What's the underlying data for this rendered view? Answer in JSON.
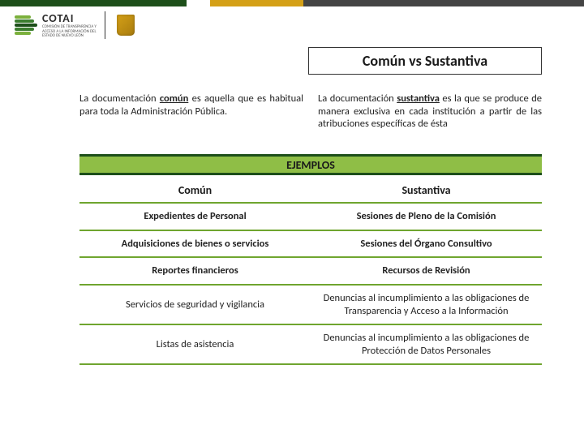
{
  "colors": {
    "green_dark": "#1d4f1a",
    "green_mid": "#3b7d2f",
    "green_light": "#7bb03c",
    "yellow": "#d4a017",
    "gray": "#444444",
    "white": "#ffffff",
    "band_green": "#8fbe46",
    "border_green": "#6fa52f"
  },
  "logo": {
    "name": "COTAI",
    "sub1": "COMISIÓN DE TRANSPARENCIA Y",
    "sub2": "ACCESO A LA INFORMACIÓN DEL",
    "sub3": "ESTADO DE NUEVO LEÓN"
  },
  "title": "Común vs Sustantiva",
  "definitions": {
    "comun_pre": "La documentación ",
    "comun_hl": "común",
    "comun_post": " es aquella que es habitual para toda la Administración Pública.",
    "sust_pre": "La documentación ",
    "sust_hl": "sustantiva",
    "sust_post": " es la que se produce de manera exclusiva en cada institución a partir de las atribuciones específicas de ésta"
  },
  "ejemplos_label": "EJEMPLOS",
  "table": {
    "header_left": "Común",
    "header_right": "Sustantiva",
    "rows": [
      {
        "left": "Expedientes de Personal",
        "right": "Sesiones de Pleno de la Comisión",
        "bold": true
      },
      {
        "left": "Adquisiciones de bienes o servicios",
        "right": "Sesiones del Órgano Consultivo",
        "bold": true
      },
      {
        "left": "Reportes financieros",
        "right": "Recursos de Revisión",
        "bold": true
      },
      {
        "left": "Servicios de seguridad y vigilancia",
        "right": "Denuncias al incumplimiento a las obligaciones de Transparencia y Acceso a la Información",
        "bold": false
      },
      {
        "left": "Listas de asistencia",
        "right": "Denuncias al incumplimiento a las obligaciones de Protección de Datos Personales",
        "bold": false
      }
    ]
  }
}
